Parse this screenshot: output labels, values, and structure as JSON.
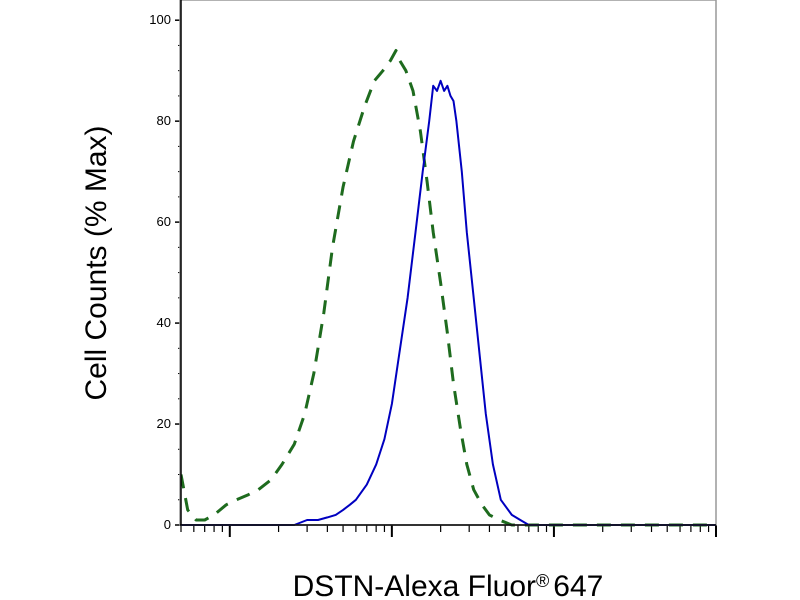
{
  "chart_data": {
    "type": "line",
    "title": "",
    "xlabel": "DSTN-Alexa Fluor",
    "xlabel_mark": "®",
    "xlabel_suffix": "647",
    "ylabel": "Cell Counts (% Max)",
    "x_scale": "log",
    "xlim": [
      0.5,
      1000
    ],
    "ylim": [
      0,
      104
    ],
    "y_ticks": [
      0,
      20,
      40,
      60,
      80,
      100
    ],
    "grid": false,
    "legend": "none",
    "series": [
      {
        "style": "dashed",
        "color": "#1e6b1e",
        "x": [
          0.5,
          0.55,
          0.62,
          0.7,
          0.8,
          0.95,
          1.1,
          1.3,
          1.5,
          1.8,
          2.1,
          2.5,
          2.9,
          3.3,
          3.8,
          4.3,
          5.0,
          5.8,
          6.8,
          7.8,
          8.8,
          9.8,
          10.6,
          11.2,
          12.2,
          13.5,
          15.0,
          16.5,
          18.0,
          20.0,
          22.0,
          24.0,
          26.5,
          29.0,
          32.0,
          36.0,
          40.0,
          46.0,
          55.0,
          70.0,
          1000
        ],
        "values": [
          10,
          3,
          1,
          1,
          2,
          4,
          5,
          6,
          7,
          9,
          12,
          16,
          22,
          30,
          42,
          55,
          67,
          76,
          83,
          88,
          90,
          92,
          94,
          92,
          90,
          86,
          78,
          68,
          58,
          48,
          38,
          28,
          19,
          12,
          7,
          4,
          2,
          1,
          0,
          0,
          0
        ]
      },
      {
        "style": "solid",
        "color": "#0000c0",
        "x": [
          0.5,
          1.0,
          1.5,
          2.0,
          2.5,
          3.0,
          3.5,
          4.0,
          4.5,
          5.0,
          5.5,
          6.0,
          7.0,
          8.0,
          9.0,
          10.0,
          11.0,
          12.5,
          14.0,
          15.5,
          17.0,
          18.0,
          19.0,
          20.0,
          21.0,
          22.0,
          23.0,
          24.0,
          25.0,
          27.0,
          29.0,
          32.0,
          35.0,
          38.0,
          42.0,
          47.0,
          55.0,
          62.0,
          70.0,
          80.0,
          100.0,
          1000
        ],
        "values": [
          0,
          0,
          0,
          0,
          0,
          1,
          1,
          1.5,
          2,
          3,
          4,
          5,
          8,
          12,
          17,
          24,
          33,
          45,
          58,
          70,
          80,
          87,
          86,
          88,
          86,
          87,
          85,
          84,
          80,
          70,
          58,
          45,
          33,
          22,
          12,
          5,
          2,
          1,
          0,
          0,
          0,
          0
        ]
      }
    ]
  }
}
